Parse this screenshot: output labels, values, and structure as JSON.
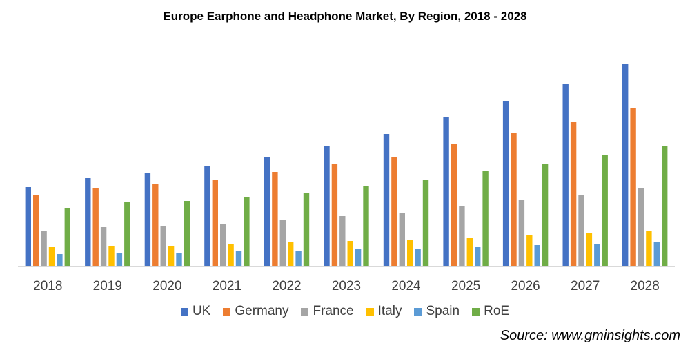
{
  "chart_data": {
    "type": "bar",
    "title": "Europe Earphone and Headphone Market, By Region, 2018  - 2028",
    "xlabel": "",
    "ylabel": "",
    "categories": [
      "2018",
      "2019",
      "2020",
      "2021",
      "2022",
      "2023",
      "2024",
      "2025",
      "2026",
      "2027",
      "2028"
    ],
    "series": [
      {
        "name": "UK",
        "color": "#4472C4",
        "values": [
          114,
          127,
          134,
          144,
          158,
          173,
          191,
          215,
          239,
          263,
          292
        ]
      },
      {
        "name": "Germany",
        "color": "#ED7D31",
        "values": [
          103,
          113,
          118,
          124,
          136,
          147,
          158,
          176,
          192,
          209,
          228
        ]
      },
      {
        "name": "France",
        "color": "#A5A5A5",
        "values": [
          50,
          56,
          58,
          61,
          66,
          72,
          77,
          87,
          95,
          103,
          113
        ]
      },
      {
        "name": "Italy",
        "color": "#FFC000",
        "values": [
          27,
          29,
          29,
          31,
          34,
          36,
          37,
          41,
          44,
          48,
          51
        ]
      },
      {
        "name": "Spain",
        "color": "#5B9BD5",
        "values": [
          17,
          19,
          19,
          21,
          22,
          24,
          25,
          27,
          30,
          32,
          35
        ]
      },
      {
        "name": "RoE",
        "color": "#70AD47",
        "values": [
          84,
          92,
          94,
          99,
          106,
          115,
          124,
          137,
          148,
          161,
          174
        ]
      }
    ],
    "legend_position": "bottom",
    "grid": false
  },
  "source": "Source: www.gminsights.com"
}
